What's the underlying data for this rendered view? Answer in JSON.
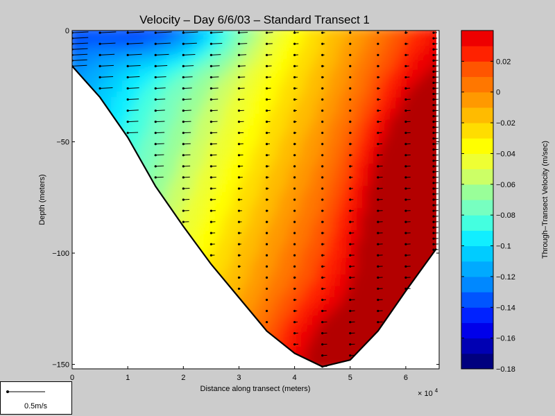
{
  "figure": {
    "background": "#cccccc",
    "exponent_label": "× 10",
    "exponent_power": "4"
  },
  "scale_legend": {
    "label": "0.5m/s"
  },
  "chart_data": {
    "type": "contourf",
    "title": "Velocity – Day 6/6/03 – Standard Transect 1",
    "xlabel": "Distance along transect (meters)",
    "ylabel": "Depth (meters)",
    "xlim": [
      0,
      66000
    ],
    "ylim": [
      -152,
      0
    ],
    "x_ticks": [
      0,
      10000,
      20000,
      30000,
      40000,
      50000,
      60000
    ],
    "x_tick_labels": [
      "0",
      "1",
      "2",
      "3",
      "4",
      "5",
      "6"
    ],
    "y_ticks": [
      0,
      -50,
      -100,
      -150
    ],
    "y_tick_labels": [
      "0",
      "−50",
      "−100",
      "−150"
    ],
    "grid": false,
    "bottom_profile": [
      [
        0,
        -16
      ],
      [
        5000,
        -30
      ],
      [
        10000,
        -48
      ],
      [
        15000,
        -70
      ],
      [
        20000,
        -88
      ],
      [
        25000,
        -105
      ],
      [
        30000,
        -120
      ],
      [
        35000,
        -135
      ],
      [
        40000,
        -145
      ],
      [
        45000,
        -151
      ],
      [
        50000,
        -148
      ],
      [
        55000,
        -135
      ],
      [
        60000,
        -117
      ],
      [
        65500,
        -98
      ],
      [
        65500,
        0
      ]
    ],
    "station_x": [
      0,
      5000,
      10000,
      15000,
      20000,
      25000,
      30000,
      35000,
      40000,
      45000,
      50000,
      55000,
      60000,
      65000
    ],
    "colorbar": {
      "label": "Through–Transect Velocity (m/sec)",
      "range": [
        -0.18,
        0.04
      ],
      "levels": [
        -0.18,
        -0.17,
        -0.16,
        -0.15,
        -0.14,
        -0.13,
        -0.12,
        -0.11,
        -0.1,
        -0.09,
        -0.08,
        -0.07,
        -0.06,
        -0.05,
        -0.04,
        -0.03,
        -0.02,
        -0.01,
        0,
        0.01,
        0.02,
        0.03,
        0.04
      ],
      "colors": [
        "#00007f",
        "#0000b3",
        "#0000ea",
        "#0022ff",
        "#0055ff",
        "#0088ff",
        "#00aaff",
        "#00ccff",
        "#11eeff",
        "#44ffe0",
        "#77ffc0",
        "#99ff99",
        "#ccff66",
        "#eeff33",
        "#ffff00",
        "#ffdd00",
        "#ffbb00",
        "#ff9900",
        "#ff7700",
        "#ff5500",
        "#ff2200",
        "#ee0000",
        "#b30000"
      ],
      "tick_values": [
        0.02,
        0,
        -0.02,
        -0.04,
        -0.06,
        -0.08,
        -0.1,
        -0.12,
        -0.14,
        -0.16,
        -0.18
      ],
      "tick_labels": [
        "0.02",
        "0",
        "−0.02",
        "−0.04",
        "−0.06",
        "−0.08",
        "−0.1",
        "−0.12",
        "−0.14",
        "−0.16",
        "−0.18"
      ]
    }
  }
}
